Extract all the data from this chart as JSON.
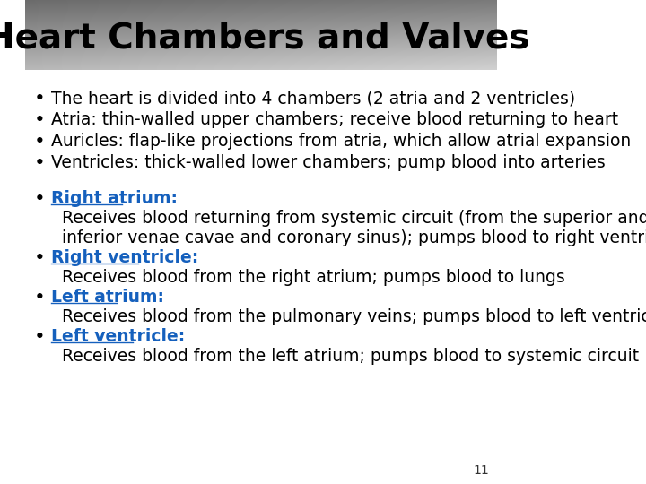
{
  "title": "Heart Chambers and Valves",
  "title_fontsize": 28,
  "title_color": "#000000",
  "background_color": "#ffffff",
  "bullet_color": "#000000",
  "blue_color": "#1560bd",
  "body_fontsize": 13.5,
  "page_number": "11",
  "bullet_points_top": [
    "The heart is divided into 4 chambers (2 atria and 2 ventricles)",
    "Atria: thin-walled upper chambers; receive blood returning to heart",
    "Auricles: flap-like projections from atria, which allow atrial expansion",
    "Ventricles: thick-walled lower chambers; pump blood into arteries"
  ],
  "bullet_points_bottom": [
    {
      "label": "Right atrium:",
      "text": "Receives blood returning from systemic circuit (from the superior and\ninferior venae cavae and coronary sinus); pumps blood to right ventricle"
    },
    {
      "label": "Right ventricle:",
      "text": "Receives blood from the right atrium; pumps blood to lungs"
    },
    {
      "label": "Left atrium:",
      "text": "Receives blood from the pulmonary veins; pumps blood to left ventricle"
    },
    {
      "label": "Left ventricle:",
      "text": "Receives blood from the left atrium; pumps blood to systemic circuit"
    }
  ]
}
